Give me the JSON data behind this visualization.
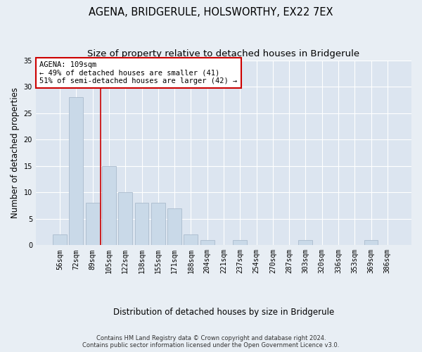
{
  "title": "AGENA, BRIDGERULE, HOLSWORTHY, EX22 7EX",
  "subtitle": "Size of property relative to detached houses in Bridgerule",
  "xlabel": "Distribution of detached houses by size in Bridgerule",
  "ylabel": "Number of detached properties",
  "categories": [
    "56sqm",
    "72sqm",
    "89sqm",
    "105sqm",
    "122sqm",
    "138sqm",
    "155sqm",
    "171sqm",
    "188sqm",
    "204sqm",
    "221sqm",
    "237sqm",
    "254sqm",
    "270sqm",
    "287sqm",
    "303sqm",
    "320sqm",
    "336sqm",
    "353sqm",
    "369sqm",
    "386sqm"
  ],
  "values": [
    2,
    28,
    8,
    15,
    10,
    8,
    8,
    7,
    2,
    1,
    0,
    1,
    0,
    0,
    0,
    1,
    0,
    0,
    0,
    1,
    0
  ],
  "bar_color": "#c9d9e8",
  "bar_edge_color": "#aabbcc",
  "vline_color": "#cc0000",
  "annotation_line1": "AGENA: 109sqm",
  "annotation_line2": "← 49% of detached houses are smaller (41)",
  "annotation_line3": "51% of semi-detached houses are larger (42) →",
  "annotation_box_color": "#ffffff",
  "annotation_box_edge": "#cc0000",
  "ylim": [
    0,
    35
  ],
  "yticks": [
    0,
    5,
    10,
    15,
    20,
    25,
    30,
    35
  ],
  "bg_color": "#e8eef4",
  "plot_bg_color": "#dce5f0",
  "grid_color": "#ffffff",
  "footer1": "Contains HM Land Registry data © Crown copyright and database right 2024.",
  "footer2": "Contains public sector information licensed under the Open Government Licence v3.0.",
  "title_fontsize": 10.5,
  "subtitle_fontsize": 9.5,
  "tick_fontsize": 7,
  "ylabel_fontsize": 8.5,
  "xlabel_fontsize": 8.5,
  "annotation_fontsize": 7.5,
  "footer_fontsize": 6
}
